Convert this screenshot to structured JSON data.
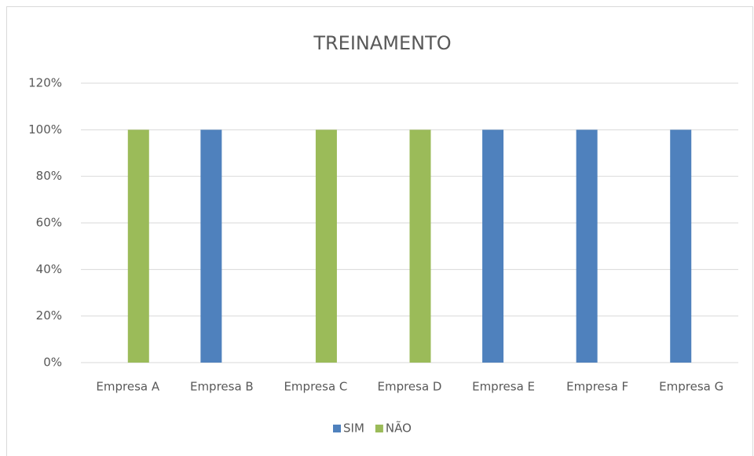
{
  "chart_data": {
    "type": "bar",
    "title": "TREINAMENTO",
    "categories": [
      "Empresa A",
      "Empresa B",
      "Empresa C",
      "Empresa D",
      "Empresa E",
      "Empresa F",
      "Empresa G"
    ],
    "series": [
      {
        "name": "SIM",
        "color": "#4f81bd",
        "values": [
          0,
          100,
          0,
          0,
          100,
          100,
          100
        ]
      },
      {
        "name": "NÃO",
        "color": "#9bbb59",
        "values": [
          100,
          0,
          100,
          100,
          0,
          0,
          0
        ]
      }
    ],
    "ylim": [
      0,
      120
    ],
    "yticks": [
      {
        "value": 0,
        "label": "0%"
      },
      {
        "value": 20,
        "label": "20%"
      },
      {
        "value": 40,
        "label": "40%"
      },
      {
        "value": 60,
        "label": "60%"
      },
      {
        "value": 80,
        "label": "80%"
      },
      {
        "value": 100,
        "label": "100%"
      },
      {
        "value": 120,
        "label": "120%"
      }
    ],
    "grid": true,
    "legend": "bottom"
  }
}
